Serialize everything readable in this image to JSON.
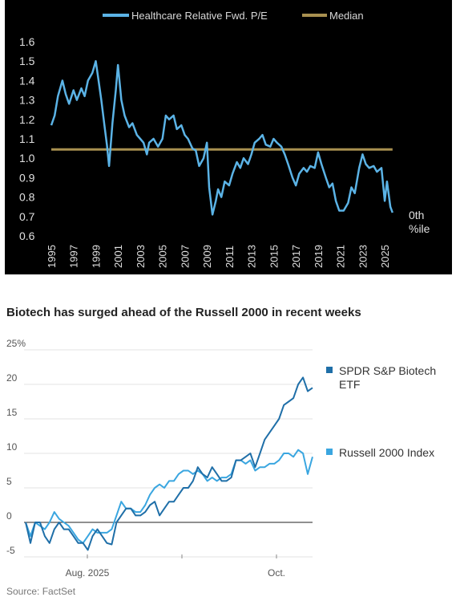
{
  "chart_data": [
    {
      "type": "line",
      "theme": "dark",
      "series": [
        {
          "name": "Healthcare Relative Fwd. P/E",
          "color": "#5bb3e6",
          "points": [
            [
              1995.0,
              1.17
            ],
            [
              1995.3,
              1.22
            ],
            [
              1995.6,
              1.32
            ],
            [
              1996.0,
              1.4
            ],
            [
              1996.3,
              1.33
            ],
            [
              1996.6,
              1.28
            ],
            [
              1997.0,
              1.35
            ],
            [
              1997.3,
              1.3
            ],
            [
              1997.7,
              1.36
            ],
            [
              1998.0,
              1.32
            ],
            [
              1998.3,
              1.4
            ],
            [
              1998.7,
              1.44
            ],
            [
              1999.0,
              1.5
            ],
            [
              1999.2,
              1.42
            ],
            [
              1999.5,
              1.3
            ],
            [
              1999.8,
              1.16
            ],
            [
              2000.0,
              1.07
            ],
            [
              2000.2,
              0.96
            ],
            [
              2000.5,
              1.18
            ],
            [
              2000.8,
              1.35
            ],
            [
              2001.0,
              1.48
            ],
            [
              2001.3,
              1.3
            ],
            [
              2001.6,
              1.22
            ],
            [
              2002.0,
              1.16
            ],
            [
              2002.3,
              1.18
            ],
            [
              2002.7,
              1.12
            ],
            [
              2003.0,
              1.1
            ],
            [
              2003.3,
              1.08
            ],
            [
              2003.6,
              1.02
            ],
            [
              2003.8,
              1.08
            ],
            [
              2004.2,
              1.1
            ],
            [
              2004.6,
              1.06
            ],
            [
              2005.0,
              1.1
            ],
            [
              2005.3,
              1.22
            ],
            [
              2005.6,
              1.2
            ],
            [
              2006.0,
              1.22
            ],
            [
              2006.3,
              1.15
            ],
            [
              2006.7,
              1.17
            ],
            [
              2007.0,
              1.12
            ],
            [
              2007.3,
              1.1
            ],
            [
              2007.7,
              1.05
            ],
            [
              2008.0,
              1.04
            ],
            [
              2008.3,
              0.96
            ],
            [
              2008.7,
              1.0
            ],
            [
              2009.0,
              1.08
            ],
            [
              2009.2,
              0.85
            ],
            [
              2009.5,
              0.71
            ],
            [
              2009.8,
              0.78
            ],
            [
              2010.0,
              0.84
            ],
            [
              2010.3,
              0.8
            ],
            [
              2010.6,
              0.88
            ],
            [
              2011.0,
              0.86
            ],
            [
              2011.3,
              0.92
            ],
            [
              2011.7,
              0.98
            ],
            [
              2012.0,
              0.95
            ],
            [
              2012.3,
              1.0
            ],
            [
              2012.7,
              0.97
            ],
            [
              2013.0,
              1.02
            ],
            [
              2013.3,
              1.08
            ],
            [
              2013.7,
              1.1
            ],
            [
              2014.0,
              1.12
            ],
            [
              2014.3,
              1.07
            ],
            [
              2014.7,
              1.06
            ],
            [
              2015.0,
              1.1
            ],
            [
              2015.3,
              1.08
            ],
            [
              2015.7,
              1.06
            ],
            [
              2016.0,
              1.02
            ],
            [
              2016.3,
              0.97
            ],
            [
              2016.7,
              0.9
            ],
            [
              2017.0,
              0.86
            ],
            [
              2017.3,
              0.92
            ],
            [
              2017.7,
              0.95
            ],
            [
              2018.0,
              0.93
            ],
            [
              2018.3,
              0.96
            ],
            [
              2018.7,
              0.95
            ],
            [
              2019.0,
              1.03
            ],
            [
              2019.3,
              0.97
            ],
            [
              2019.7,
              0.9
            ],
            [
              2020.0,
              0.85
            ],
            [
              2020.3,
              0.87
            ],
            [
              2020.6,
              0.78
            ],
            [
              2020.9,
              0.73
            ],
            [
              2021.3,
              0.73
            ],
            [
              2021.7,
              0.77
            ],
            [
              2022.0,
              0.85
            ],
            [
              2022.3,
              0.82
            ],
            [
              2022.7,
              0.95
            ],
            [
              2023.0,
              1.02
            ],
            [
              2023.3,
              0.97
            ],
            [
              2023.6,
              0.95
            ],
            [
              2024.0,
              0.96
            ],
            [
              2024.3,
              0.93
            ],
            [
              2024.7,
              0.95
            ],
            [
              2025.0,
              0.78
            ],
            [
              2025.2,
              0.88
            ],
            [
              2025.5,
              0.75
            ],
            [
              2025.7,
              0.72
            ]
          ]
        },
        {
          "name": "Median",
          "color": "#a89050",
          "points": [
            [
              1995.0,
              1.045
            ],
            [
              2025.7,
              1.045
            ]
          ]
        }
      ],
      "xticks": [
        "1995",
        "1997",
        "1999",
        "2001",
        "2003",
        "2005",
        "2007",
        "2009",
        "2011",
        "2013",
        "2015",
        "2017",
        "2019",
        "2021",
        "2023",
        "2025"
      ],
      "yticks": [
        "0.6",
        "0.7",
        "0.8",
        "0.9",
        "1.0",
        "1.1",
        "1.2",
        "1.3",
        "1.4",
        "1.5",
        "1.6"
      ],
      "xlim": [
        1995,
        2026
      ],
      "ylim": [
        0.6,
        1.6
      ],
      "annotation": "0th\n%ile",
      "legend_position": "top"
    },
    {
      "type": "line",
      "title": "Biotech has surged ahead of the Russell 2000 in recent weeks",
      "series": [
        {
          "name": "SPDR S&P Biotech ETF",
          "color": "#1f6fa8",
          "values": [
            0,
            -3,
            0,
            0,
            -2,
            -3,
            -1,
            0,
            -1,
            -1,
            -2,
            -3,
            -3,
            -4,
            -2,
            -1,
            -2,
            -3,
            -3.2,
            0,
            1,
            2,
            2,
            1,
            1,
            1.5,
            2.5,
            3,
            1,
            2,
            3,
            3,
            4,
            5,
            5,
            6,
            8,
            7,
            6.5,
            8,
            7,
            6,
            6,
            6.5,
            9,
            9,
            9.5,
            10,
            8,
            10,
            12,
            13,
            14,
            15,
            17,
            17.5,
            18,
            20,
            21,
            19,
            19.5
          ]
        },
        {
          "name": "Russell 2000 Index",
          "color": "#3aa6e0",
          "values": [
            0,
            -2,
            0,
            -0.5,
            -1,
            0,
            1.5,
            0.5,
            0,
            -0.5,
            -1.5,
            -2.5,
            -3,
            -2,
            -1,
            -1.5,
            -1.5,
            -1.5,
            -1,
            1,
            3,
            2,
            2,
            1.5,
            1.5,
            2.5,
            4,
            5,
            5.5,
            5,
            6,
            6,
            7,
            7.5,
            7.5,
            7,
            7.5,
            7,
            6,
            6.5,
            6,
            6.5,
            6.5,
            7,
            9,
            9,
            8.5,
            9,
            7.5,
            8,
            8,
            8.5,
            8.5,
            9,
            10,
            10,
            9.5,
            10.5,
            10,
            7,
            9.5
          ]
        }
      ],
      "yticks": [
        "-5",
        "0",
        "5",
        "10",
        "15",
        "20",
        "25%"
      ],
      "ylim": [
        -5,
        25
      ],
      "xlabels": [
        "Aug. 2025",
        "Oct."
      ],
      "legend_position": "right"
    }
  ],
  "source_note": "Source: FactSet"
}
